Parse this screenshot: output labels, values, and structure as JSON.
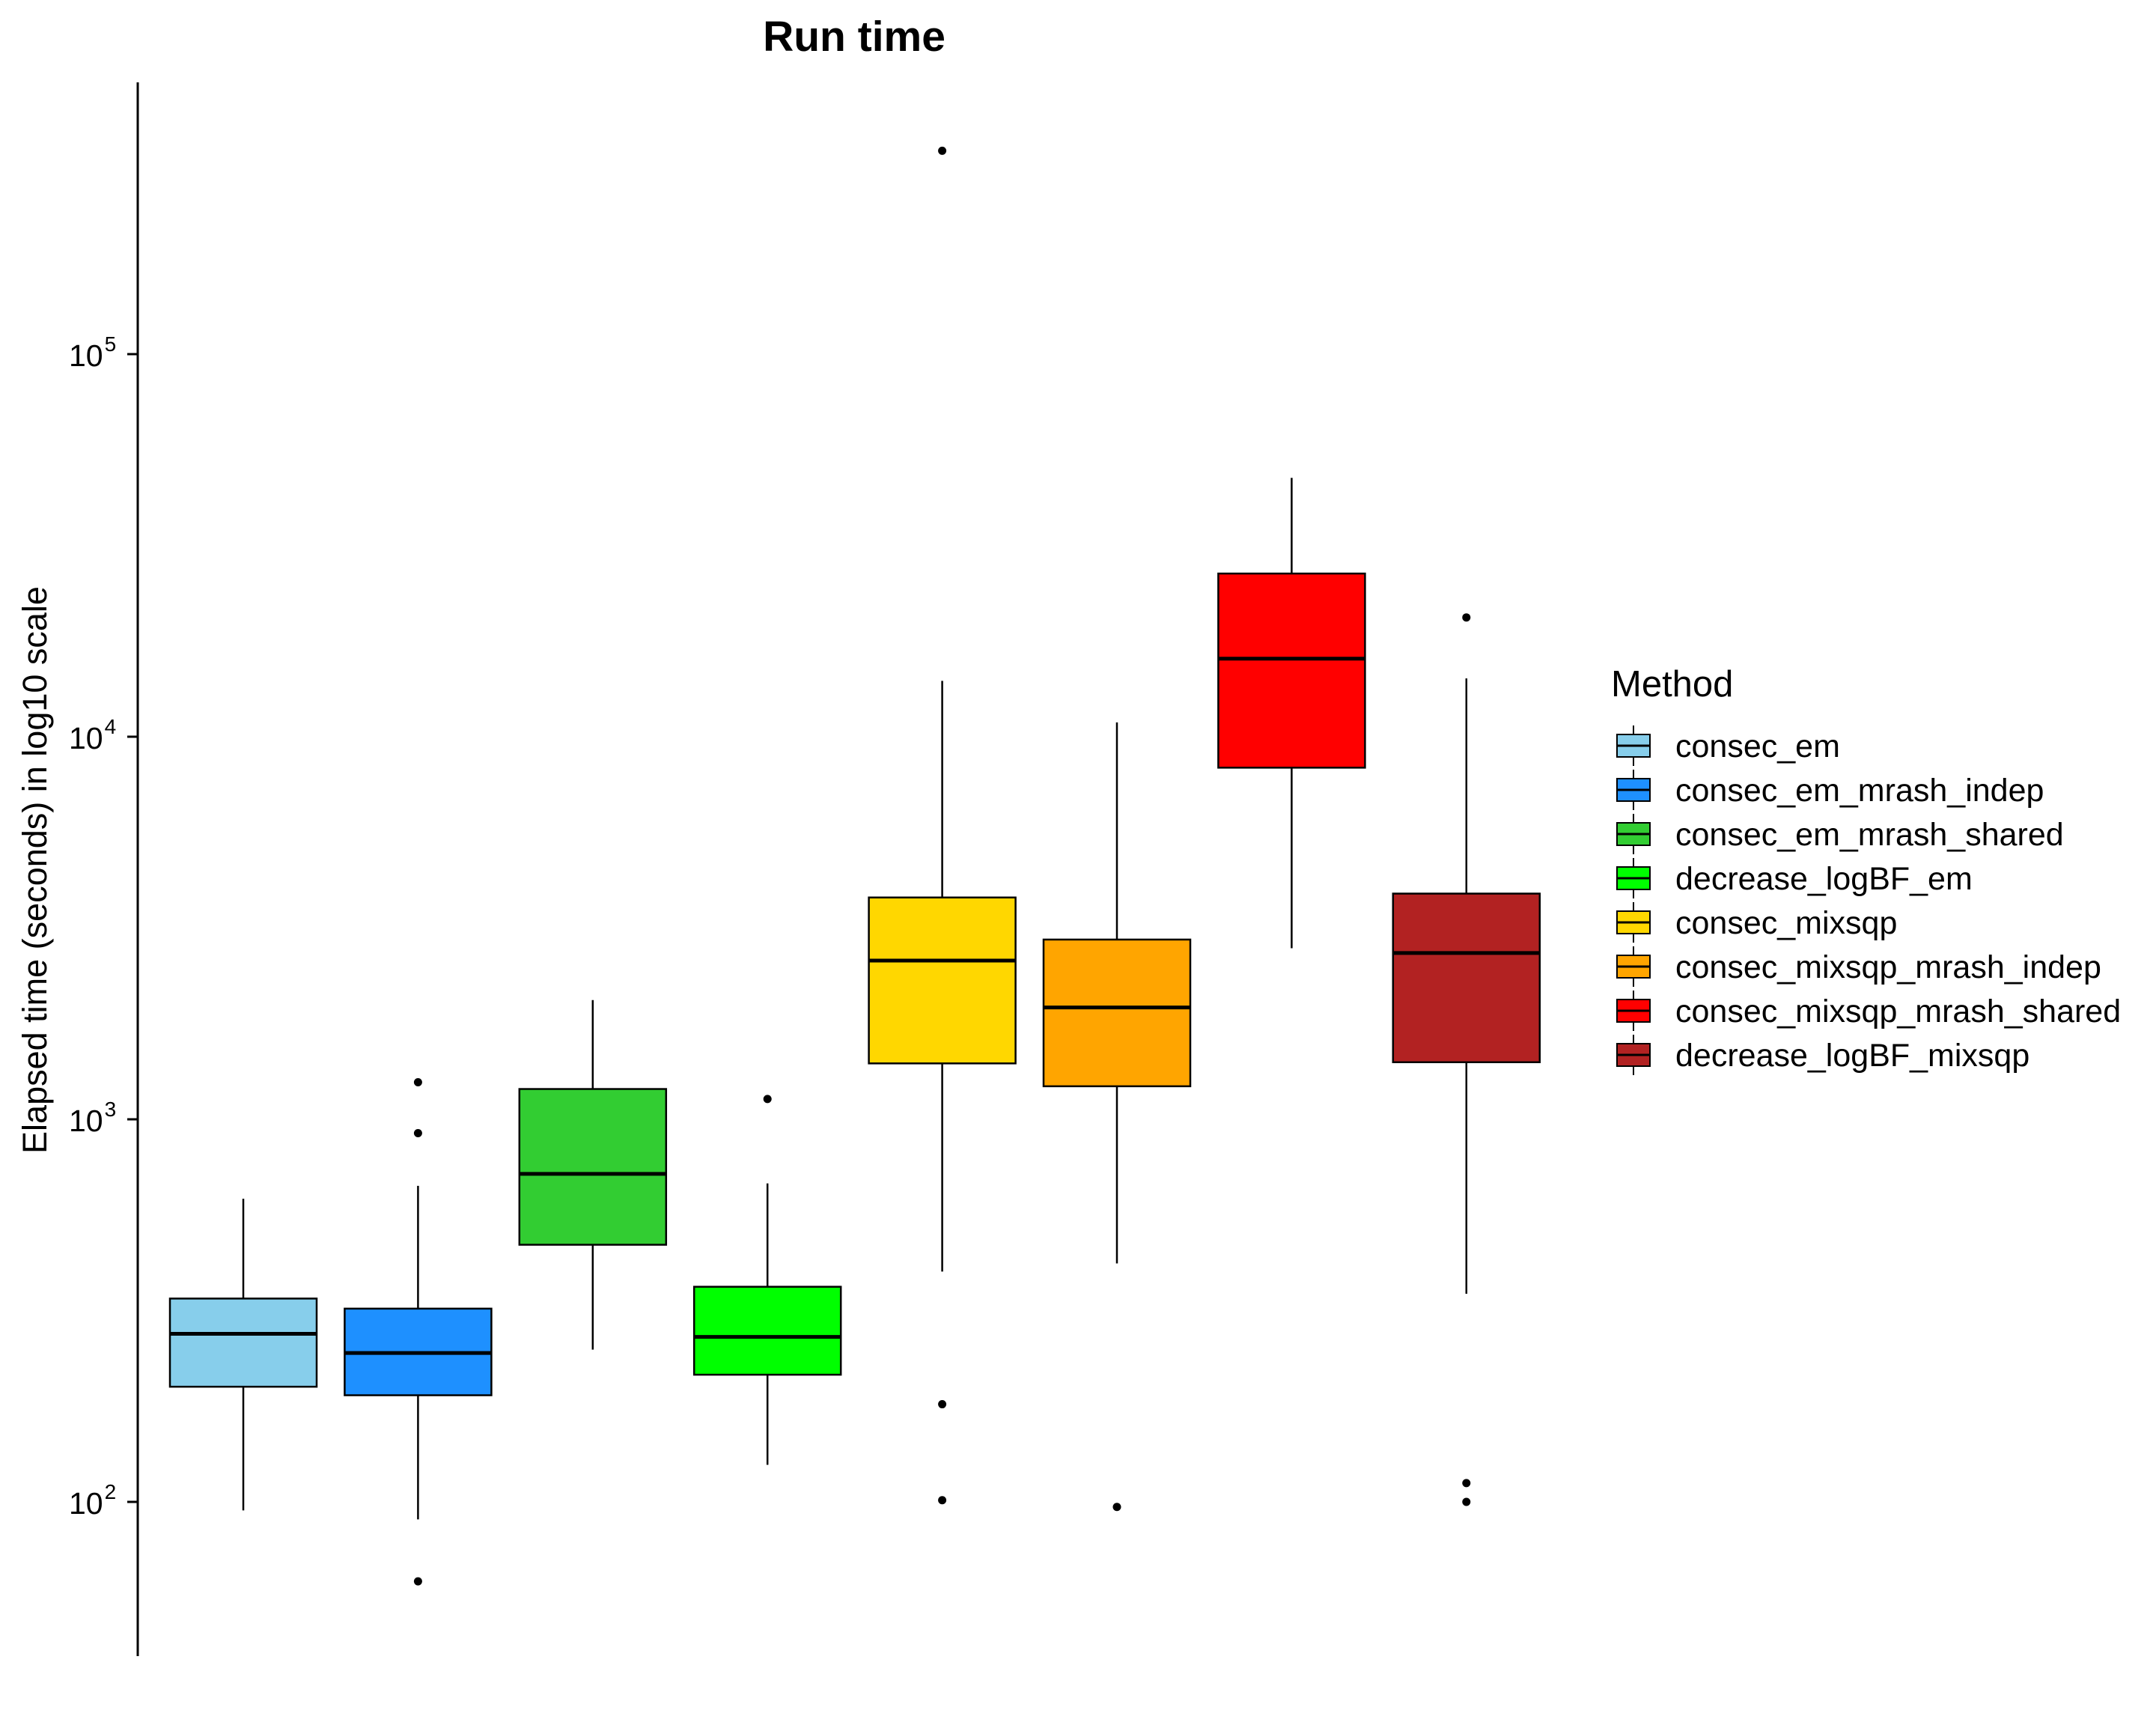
{
  "chart_data": {
    "type": "box",
    "title": "Run time",
    "xlabel": "",
    "ylabel": "Elapsed time (seconds) in log10 scale",
    "y_scale": "log10",
    "ylim": [
      40,
      700000
    ],
    "y_ticks": [
      {
        "value": 100,
        "base": "10",
        "exp": "2"
      },
      {
        "value": 1000,
        "base": "10",
        "exp": "3"
      },
      {
        "value": 10000,
        "base": "10",
        "exp": "4"
      },
      {
        "value": 100000,
        "base": "10",
        "exp": "5"
      }
    ],
    "grid": false,
    "legend": {
      "title": "Method",
      "position": "right"
    },
    "series": [
      {
        "name": "consec_em",
        "color": "#87CEEB",
        "whisker_low": 95,
        "q1": 200,
        "median": 275,
        "q3": 340,
        "whisker_high": 620,
        "outliers": []
      },
      {
        "name": "consec_em_mrash_indep",
        "color": "#1E90FF",
        "whisker_low": 90,
        "q1": 190,
        "median": 245,
        "q3": 320,
        "whisker_high": 670,
        "outliers": [
          62,
          920,
          1250
        ]
      },
      {
        "name": "consec_em_mrash_shared",
        "color": "#32CD32",
        "whisker_low": 250,
        "q1": 470,
        "median": 720,
        "q3": 1200,
        "whisker_high": 2050,
        "outliers": []
      },
      {
        "name": "decrease_logBF_em",
        "color": "#00FF00",
        "whisker_low": 125,
        "q1": 215,
        "median": 270,
        "q3": 365,
        "whisker_high": 680,
        "outliers": [
          1130
        ]
      },
      {
        "name": "consec_mixsqp",
        "color": "#FFD700",
        "whisker_low": 400,
        "q1": 1400,
        "median": 2600,
        "q3": 3800,
        "whisker_high": 14000,
        "outliers": [
          101,
          180,
          340000
        ]
      },
      {
        "name": "consec_mixsqp_mrash_indep",
        "color": "#FFA500",
        "whisker_low": 420,
        "q1": 1220,
        "median": 1960,
        "q3": 2950,
        "whisker_high": 10900,
        "outliers": [
          97
        ]
      },
      {
        "name": "consec_mixsqp_mrash_shared",
        "color": "#FF0000",
        "whisker_low": 2800,
        "q1": 8300,
        "median": 16000,
        "q3": 26700,
        "whisker_high": 47500,
        "outliers": []
      },
      {
        "name": "decrease_logBF_mixsqp",
        "color": "#B22222",
        "whisker_low": 350,
        "q1": 1410,
        "median": 2720,
        "q3": 3890,
        "whisker_high": 14200,
        "outliers": [
          100,
          112,
          20500
        ]
      }
    ]
  }
}
